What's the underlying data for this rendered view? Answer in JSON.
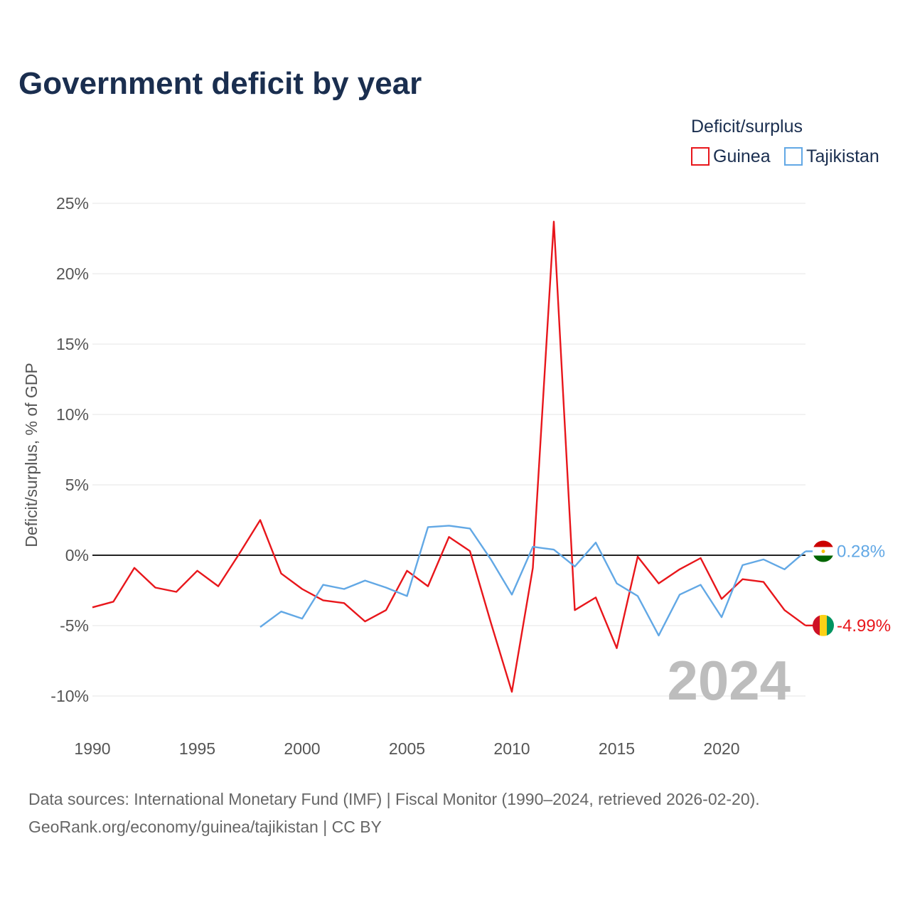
{
  "title": "Government deficit by year",
  "legend": {
    "title": "Deficit/surplus",
    "items": [
      {
        "label": "Guinea",
        "color": "#e8161b"
      },
      {
        "label": "Tajikistan",
        "color": "#62a8e5"
      }
    ]
  },
  "watermark_year": "2024",
  "footer": {
    "line1": "Data sources: International Monetary Fund (IMF) | Fiscal Monitor (1990–2024, retrieved 2026-02-20).",
    "line2": "GeoRank.org/economy/guinea/tajikistan | CC BY"
  },
  "chart_data": {
    "type": "line",
    "title": "Government deficit by year",
    "ylabel": "Deficit/surplus, % of GDP",
    "xlabel": "",
    "xlim": [
      1990,
      2024
    ],
    "ylim": [
      -12,
      26
    ],
    "x_ticks": [
      1990,
      1995,
      2000,
      2005,
      2010,
      2015,
      2020
    ],
    "y_ticks": [
      25,
      20,
      15,
      10,
      5,
      0,
      -5,
      -10
    ],
    "y_tick_labels": [
      "25%",
      "20%",
      "15%",
      "10%",
      "5%",
      "0%",
      "-5%",
      "-10%"
    ],
    "grid": true,
    "legend_position": "top-right",
    "series": [
      {
        "name": "Guinea",
        "color": "#e8161b",
        "end_label": "-4.99%",
        "x": [
          1990,
          1991,
          1992,
          1993,
          1994,
          1995,
          1996,
          1997,
          1998,
          1999,
          2000,
          2001,
          2002,
          2003,
          2004,
          2005,
          2006,
          2007,
          2008,
          2009,
          2010,
          2011,
          2012,
          2013,
          2014,
          2015,
          2016,
          2017,
          2018,
          2019,
          2020,
          2021,
          2022,
          2023,
          2024
        ],
        "values": [
          -3.7,
          -3.3,
          -0.9,
          -2.3,
          -2.6,
          -1.1,
          -2.2,
          0.1,
          2.5,
          -1.3,
          -2.4,
          -3.2,
          -3.4,
          -4.7,
          -3.9,
          -1.1,
          -2.2,
          1.3,
          0.3,
          -4.8,
          -9.7,
          -0.9,
          23.7,
          -3.9,
          -3.0,
          -6.6,
          -0.1,
          -2.0,
          -1.0,
          -0.2,
          -3.1,
          -1.7,
          -1.9,
          -3.9,
          -4.99
        ]
      },
      {
        "name": "Tajikistan",
        "color": "#62a8e5",
        "end_label": "0.28%",
        "x": [
          1998,
          1999,
          2000,
          2001,
          2002,
          2003,
          2004,
          2005,
          2006,
          2007,
          2008,
          2009,
          2010,
          2011,
          2012,
          2013,
          2014,
          2015,
          2016,
          2017,
          2018,
          2019,
          2020,
          2021,
          2022,
          2023,
          2024
        ],
        "values": [
          -5.1,
          -4.0,
          -4.5,
          -2.1,
          -2.4,
          -1.8,
          -2.3,
          -2.9,
          2.0,
          2.1,
          1.9,
          -0.3,
          -2.8,
          0.6,
          0.4,
          -0.8,
          0.9,
          -2.0,
          -2.9,
          -5.7,
          -2.8,
          -2.1,
          -4.4,
          -0.7,
          -0.3,
          -1.0,
          0.28
        ]
      }
    ]
  }
}
